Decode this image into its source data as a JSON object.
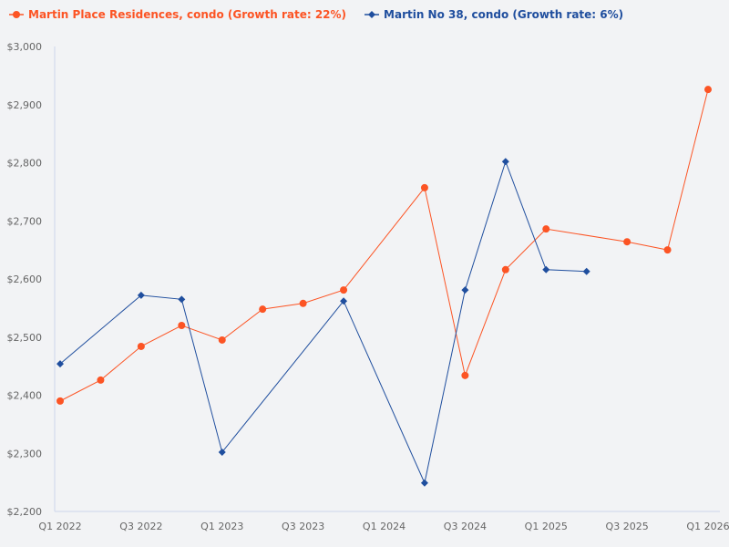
{
  "chart_data": {
    "type": "line",
    "title": "",
    "xlabel": "",
    "ylabel": "",
    "ylim": [
      2200,
      3000
    ],
    "y_ticks": [
      "$2,200",
      "$2,300",
      "$2,400",
      "$2,500",
      "$2,600",
      "$2,700",
      "$2,800",
      "$2,900",
      "$3,000"
    ],
    "y_tick_values": [
      2200,
      2300,
      2400,
      2500,
      2600,
      2700,
      2800,
      2900,
      3000
    ],
    "x": [
      "Q1 2022",
      "Q2 2022",
      "Q3 2022",
      "Q4 2022",
      "Q1 2023",
      "Q2 2023",
      "Q3 2023",
      "Q4 2023",
      "Q1 2024",
      "Q2 2024",
      "Q3 2024",
      "Q4 2024",
      "Q1 2025",
      "Q2 2025",
      "Q3 2025",
      "Q4 2025",
      "Q1 2026"
    ],
    "x_tick_labels": [
      "Q1 2022",
      "Q3 2022",
      "Q1 2023",
      "Q3 2023",
      "Q1 2024",
      "Q3 2024",
      "Q1 2025",
      "Q3 2025",
      "Q1 2026"
    ],
    "grid": false,
    "legend_position": "top-left",
    "series": [
      {
        "name": "Martin Place Residences, condo (Growth rate: 22%)",
        "color": "#fc5424",
        "marker": "circle",
        "values": [
          2390,
          2426,
          2484,
          2520,
          2495,
          2548,
          2558,
          2581,
          null,
          2757,
          2434,
          2616,
          2686,
          null,
          2664,
          2650,
          2926
        ]
      },
      {
        "name": "Martin No 38, condo (Growth rate: 6%)",
        "color": "#1f4e9e",
        "marker": "diamond",
        "values": [
          2454,
          null,
          2572,
          2565,
          2302,
          null,
          null,
          2562,
          null,
          2249,
          2581,
          2802,
          2616,
          2613,
          null,
          null,
          null
        ]
      }
    ]
  }
}
